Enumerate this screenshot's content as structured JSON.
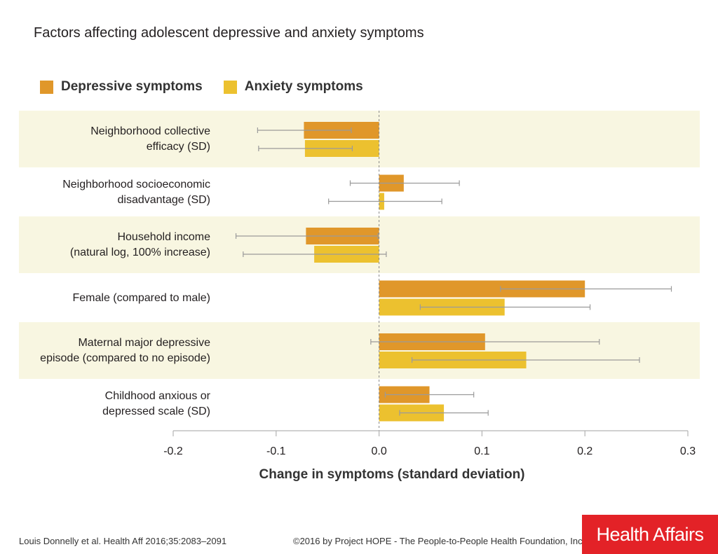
{
  "chart_data": {
    "type": "bar",
    "orientation": "horizontal",
    "title": "Factors affecting adolescent depressive and anxiety symptoms",
    "xlabel": "Change in symptoms (standard deviation)",
    "ylabel": "",
    "xlim": [
      -0.2,
      0.3
    ],
    "xticks": [
      -0.2,
      -0.1,
      0.0,
      0.1,
      0.2,
      0.3
    ],
    "xtick_labels": [
      "-0.2",
      "-0.1",
      "0.0",
      "0.1",
      "0.2",
      "0.3"
    ],
    "categories": [
      [
        "Neighborhood collective",
        "efficacy (SD)"
      ],
      [
        "Neighborhood socioeconomic",
        "disadvantage (SD)"
      ],
      [
        "Household income",
        "(natural log, 100% increase)"
      ],
      [
        "Female (compared to male)"
      ],
      [
        "Maternal major depressive",
        "episode (compared to no episode)"
      ],
      [
        "Childhood anxious or",
        "depressed scale (SD)"
      ]
    ],
    "series": [
      {
        "name": "Depressive symptoms",
        "color": "#e0972a",
        "values": [
          -0.073,
          0.024,
          -0.071,
          0.2,
          0.103,
          0.049
        ],
        "ci_low": [
          -0.118,
          -0.028,
          -0.139,
          0.118,
          -0.008,
          0.006
        ],
        "ci_high": [
          -0.027,
          0.078,
          -0.001,
          0.284,
          0.214,
          0.092
        ]
      },
      {
        "name": "Anxiety symptoms",
        "color": "#ecc12f",
        "values": [
          -0.072,
          0.005,
          -0.063,
          0.122,
          0.143,
          0.063
        ],
        "ci_low": [
          -0.117,
          -0.049,
          -0.132,
          0.04,
          0.032,
          0.02
        ],
        "ci_high": [
          -0.026,
          0.061,
          0.007,
          0.205,
          0.253,
          0.106
        ]
      }
    ],
    "legend_position": "top-left",
    "grid": false,
    "zero_line": "dashed"
  },
  "footer": {
    "citation": "Louis Donnelly et al. Health Aff 2016;35:2083–2091",
    "copyright": "©2016 by Project HOPE - The People-to-People Health Foundation, Inc.",
    "logo": "Health Affairs"
  },
  "colors": {
    "band": "#f8f6e1",
    "axis": "#b3b3b3",
    "whisker": "#9a9a9a",
    "logo_bg": "#e32227"
  }
}
